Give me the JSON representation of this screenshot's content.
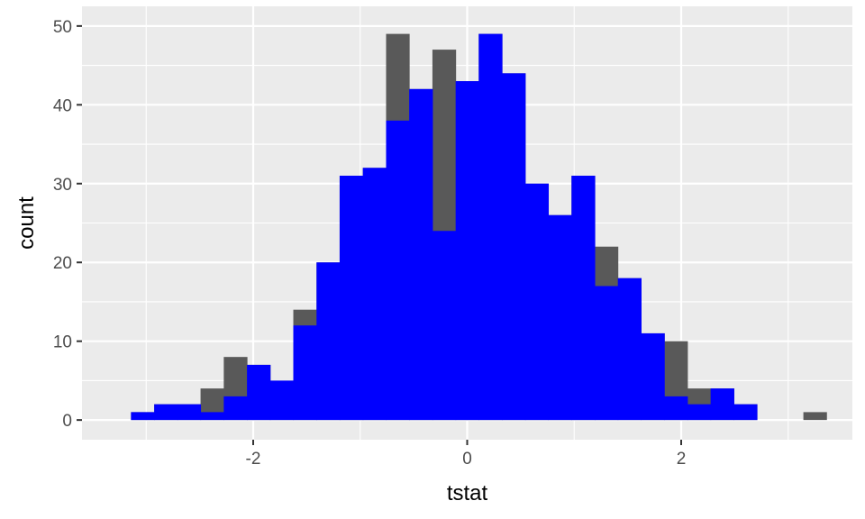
{
  "chart_data": {
    "type": "bar",
    "xlabel": "tstat",
    "ylabel": "count",
    "xlim": [
      -3.6,
      3.6
    ],
    "ylim": [
      -2.5,
      52.5
    ],
    "x_ticks": [
      -2,
      0,
      2
    ],
    "x_tick_labels": [
      "-2",
      "0",
      "2"
    ],
    "y_ticks": [
      0,
      10,
      20,
      30,
      40,
      50
    ],
    "y_tick_labels": [
      "0",
      "10",
      "20",
      "30",
      "40",
      "50"
    ],
    "grid": true,
    "bin_width": 0.2167,
    "bins": [
      {
        "x0": -3.142,
        "x1": -2.925,
        "blue": 1,
        "gray": 1
      },
      {
        "x0": -2.925,
        "x1": -2.708,
        "blue": 2,
        "gray": 2
      },
      {
        "x0": -2.708,
        "x1": -2.492,
        "blue": 2,
        "gray": 2
      },
      {
        "x0": -2.492,
        "x1": -2.275,
        "blue": 1,
        "gray": 4
      },
      {
        "x0": -2.275,
        "x1": -2.058,
        "blue": 3,
        "gray": 8
      },
      {
        "x0": -2.058,
        "x1": -1.842,
        "blue": 7,
        "gray": 7
      },
      {
        "x0": -1.842,
        "x1": -1.625,
        "blue": 5,
        "gray": 5
      },
      {
        "x0": -1.625,
        "x1": -1.408,
        "blue": 12,
        "gray": 14
      },
      {
        "x0": -1.408,
        "x1": -1.192,
        "blue": 20,
        "gray": 20
      },
      {
        "x0": -1.192,
        "x1": -0.975,
        "blue": 31,
        "gray": 31
      },
      {
        "x0": -0.975,
        "x1": -0.758,
        "blue": 32,
        "gray": 32
      },
      {
        "x0": -0.758,
        "x1": -0.542,
        "blue": 38,
        "gray": 49
      },
      {
        "x0": -0.542,
        "x1": -0.325,
        "blue": 42,
        "gray": 42
      },
      {
        "x0": -0.325,
        "x1": -0.108,
        "blue": 24,
        "gray": 47
      },
      {
        "x0": -0.108,
        "x1": 0.108,
        "blue": 43,
        "gray": 43
      },
      {
        "x0": 0.108,
        "x1": 0.325,
        "blue": 49,
        "gray": 49
      },
      {
        "x0": 0.325,
        "x1": 0.542,
        "blue": 44,
        "gray": 44
      },
      {
        "x0": 0.542,
        "x1": 0.758,
        "blue": 30,
        "gray": 30
      },
      {
        "x0": 0.758,
        "x1": 0.975,
        "blue": 26,
        "gray": 26
      },
      {
        "x0": 0.975,
        "x1": 1.192,
        "blue": 31,
        "gray": 31
      },
      {
        "x0": 1.192,
        "x1": 1.408,
        "blue": 17,
        "gray": 22
      },
      {
        "x0": 1.408,
        "x1": 1.625,
        "blue": 18,
        "gray": 18
      },
      {
        "x0": 1.625,
        "x1": 1.842,
        "blue": 11,
        "gray": 11
      },
      {
        "x0": 1.842,
        "x1": 2.058,
        "blue": 3,
        "gray": 10
      },
      {
        "x0": 2.058,
        "x1": 2.275,
        "blue": 2,
        "gray": 4
      },
      {
        "x0": 2.275,
        "x1": 2.492,
        "blue": 4,
        "gray": 4
      },
      {
        "x0": 2.492,
        "x1": 2.708,
        "blue": 2,
        "gray": 2
      },
      {
        "x0": 2.708,
        "x1": 2.925,
        "blue": 0,
        "gray": 0
      },
      {
        "x0": 2.925,
        "x1": 3.142,
        "blue": 0,
        "gray": 0
      },
      {
        "x0": 3.142,
        "x1": 3.358,
        "blue": 0,
        "gray": 1
      }
    ],
    "colors": {
      "panel": "#ebebeb",
      "grid": "#ffffff",
      "gray_bar": "#595959",
      "blue_bar": "#0000ff",
      "tick": "#333333"
    }
  }
}
